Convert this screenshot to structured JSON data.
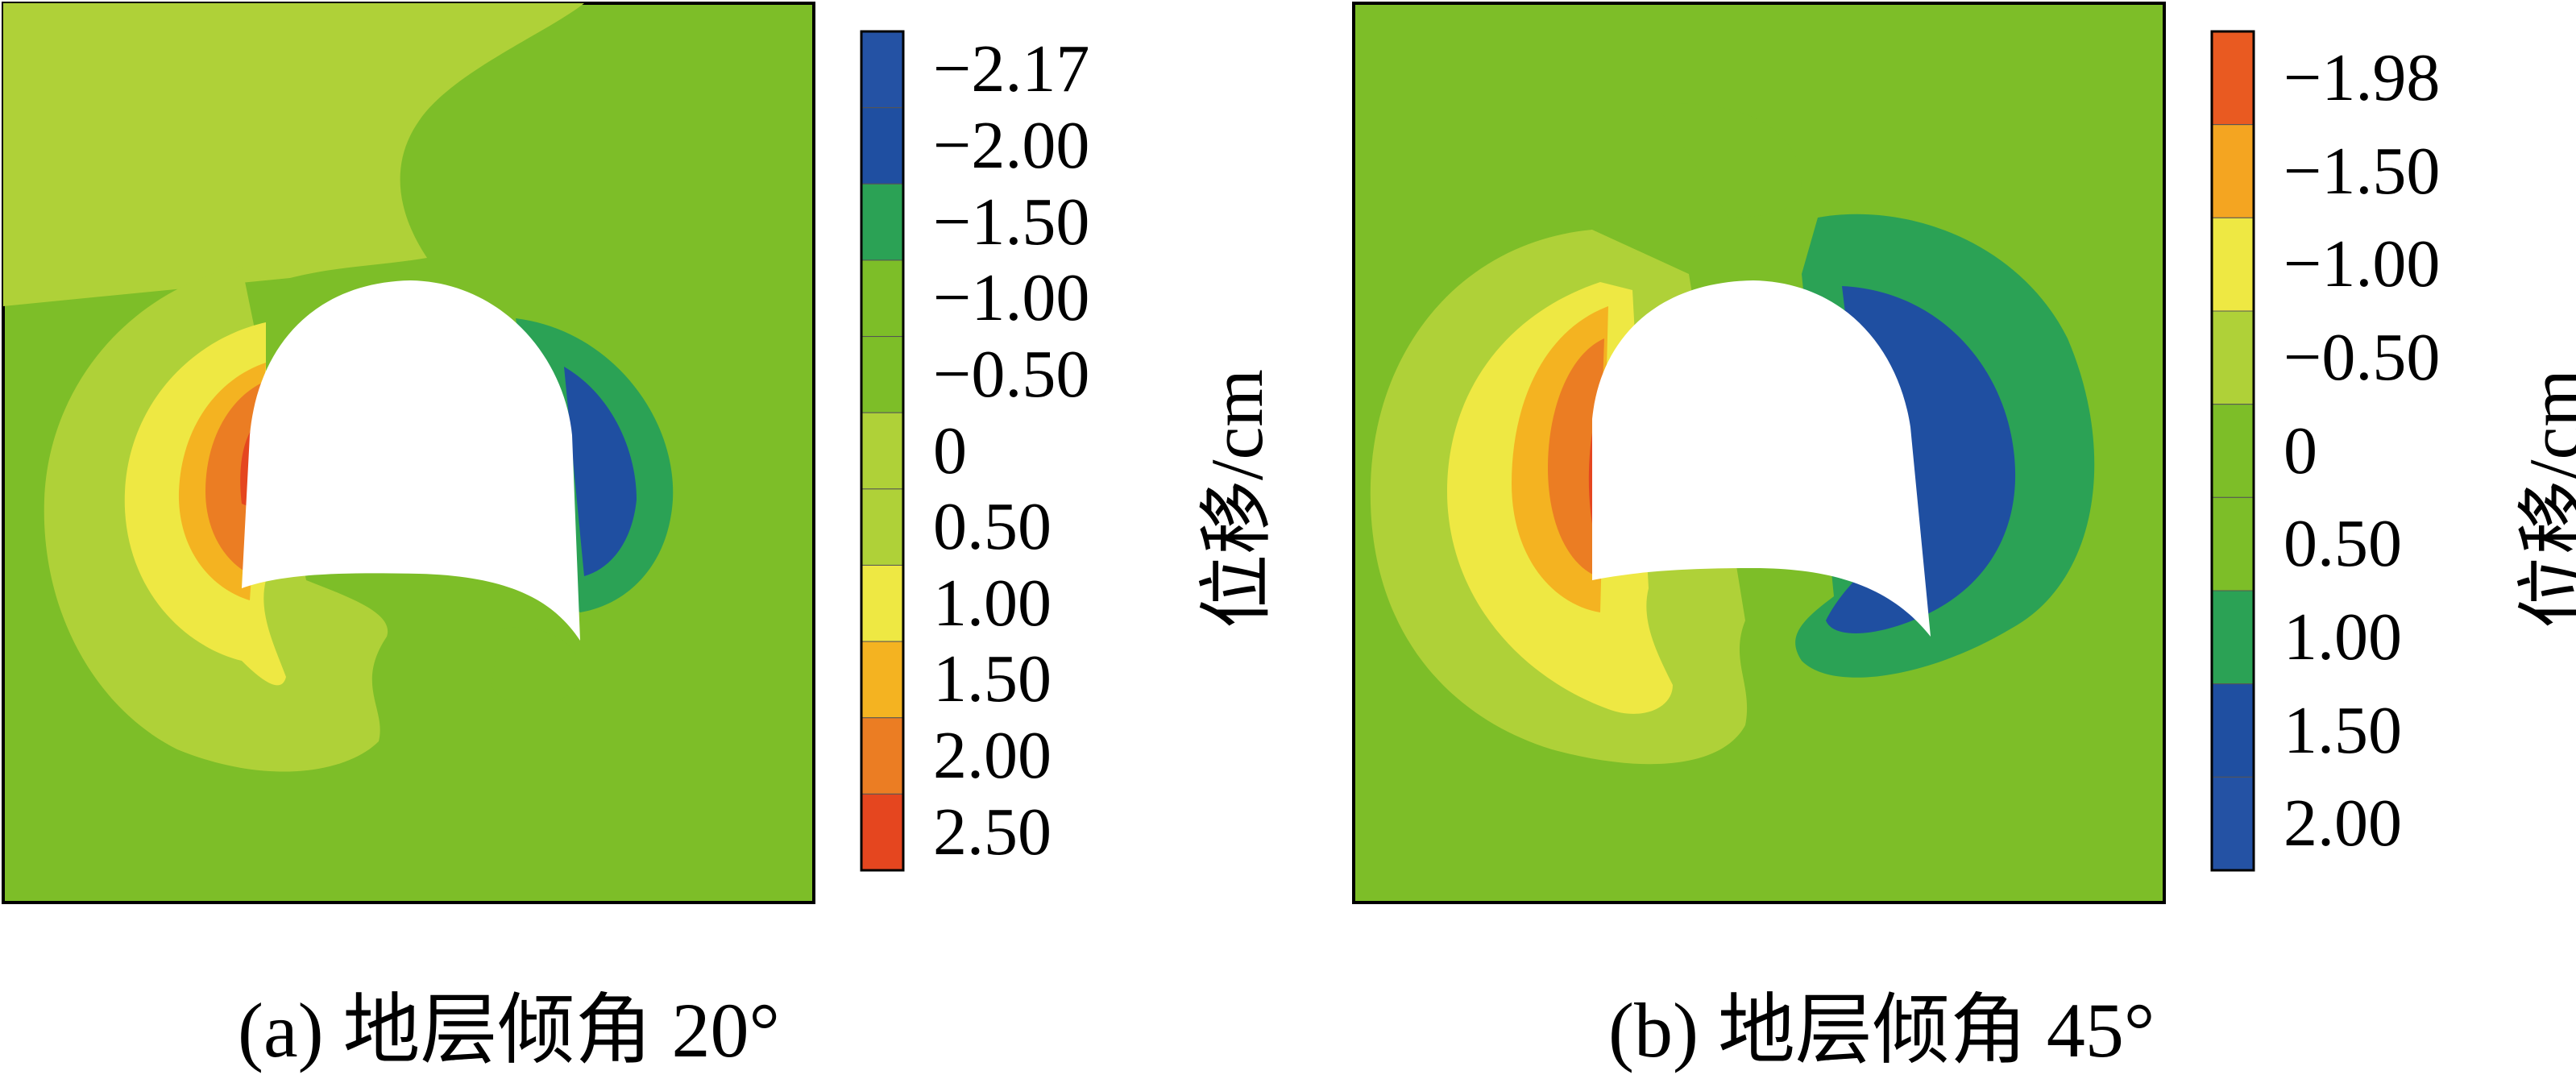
{
  "colors": {
    "background_green": "#7DBE28",
    "light_green": "#AFD138",
    "yellow": "#EEE843",
    "light_orange": "#F4B321",
    "orange": "#EB7D23",
    "red_orange": "#E5461F",
    "mid_green": "#2BA255",
    "blue": "#1F4FA1",
    "dark_blue": "#2452A4",
    "tunnel_white": "#FFFFFF"
  },
  "panels": [
    {
      "caption": "(a)  地层倾角 20°",
      "unit": "位移/cm",
      "legend": {
        "ticks": [
          "−2.17",
          "−2.00",
          "−1.50",
          "−1.00",
          "−0.50",
          "0",
          "0.50",
          "1.00",
          "1.50",
          "2.00",
          "2.50"
        ],
        "band_colors": [
          "#2452A4",
          "#1F4FA1",
          "#2BA255",
          "#7DBE28",
          "#7DBE28",
          "#AFD138",
          "#AFD138",
          "#EEE843",
          "#F4B321",
          "#EB7D23",
          "#E5461F"
        ]
      }
    },
    {
      "caption": "(b)  地层倾角 45°",
      "unit": "位移/cm",
      "legend": {
        "ticks": [
          "−1.98",
          "−1.50",
          "−1.00",
          "−0.50",
          "0",
          "0.50",
          "1.00",
          "1.50",
          "2.00"
        ],
        "band_colors": [
          "#E95A21",
          "#F4A521",
          "#EEE843",
          "#AFD138",
          "#7DBE28",
          "#7DBE28",
          "#2BA255",
          "#1F4FA1",
          "#2452A4"
        ]
      }
    }
  ]
}
